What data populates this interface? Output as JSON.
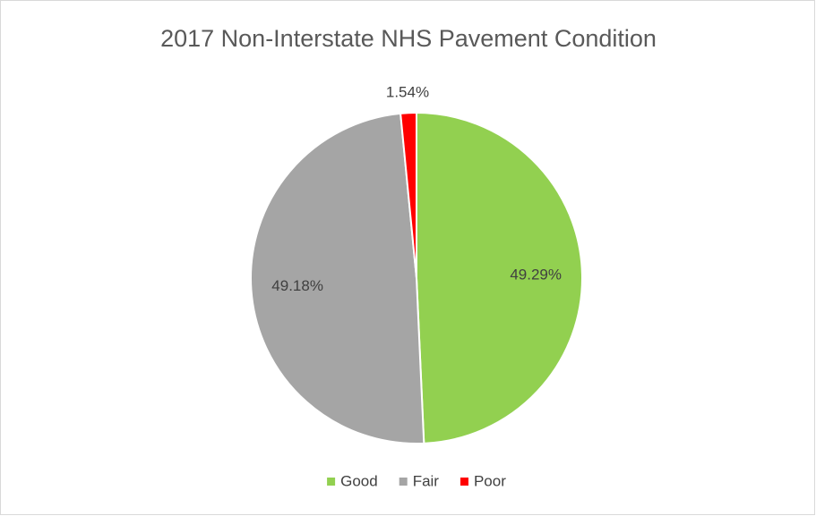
{
  "chart_data": {
    "type": "pie",
    "title": "2017 Non-Interstate NHS Pavement Condition",
    "categories": [
      "Good",
      "Fair",
      "Poor"
    ],
    "values": [
      49.29,
      49.18,
      1.54
    ],
    "value_labels": [
      "49.29%",
      "49.18%",
      "1.54%"
    ],
    "colors": [
      "#92d050",
      "#a5a5a5",
      "#ff0000"
    ],
    "legend": "bottom"
  }
}
